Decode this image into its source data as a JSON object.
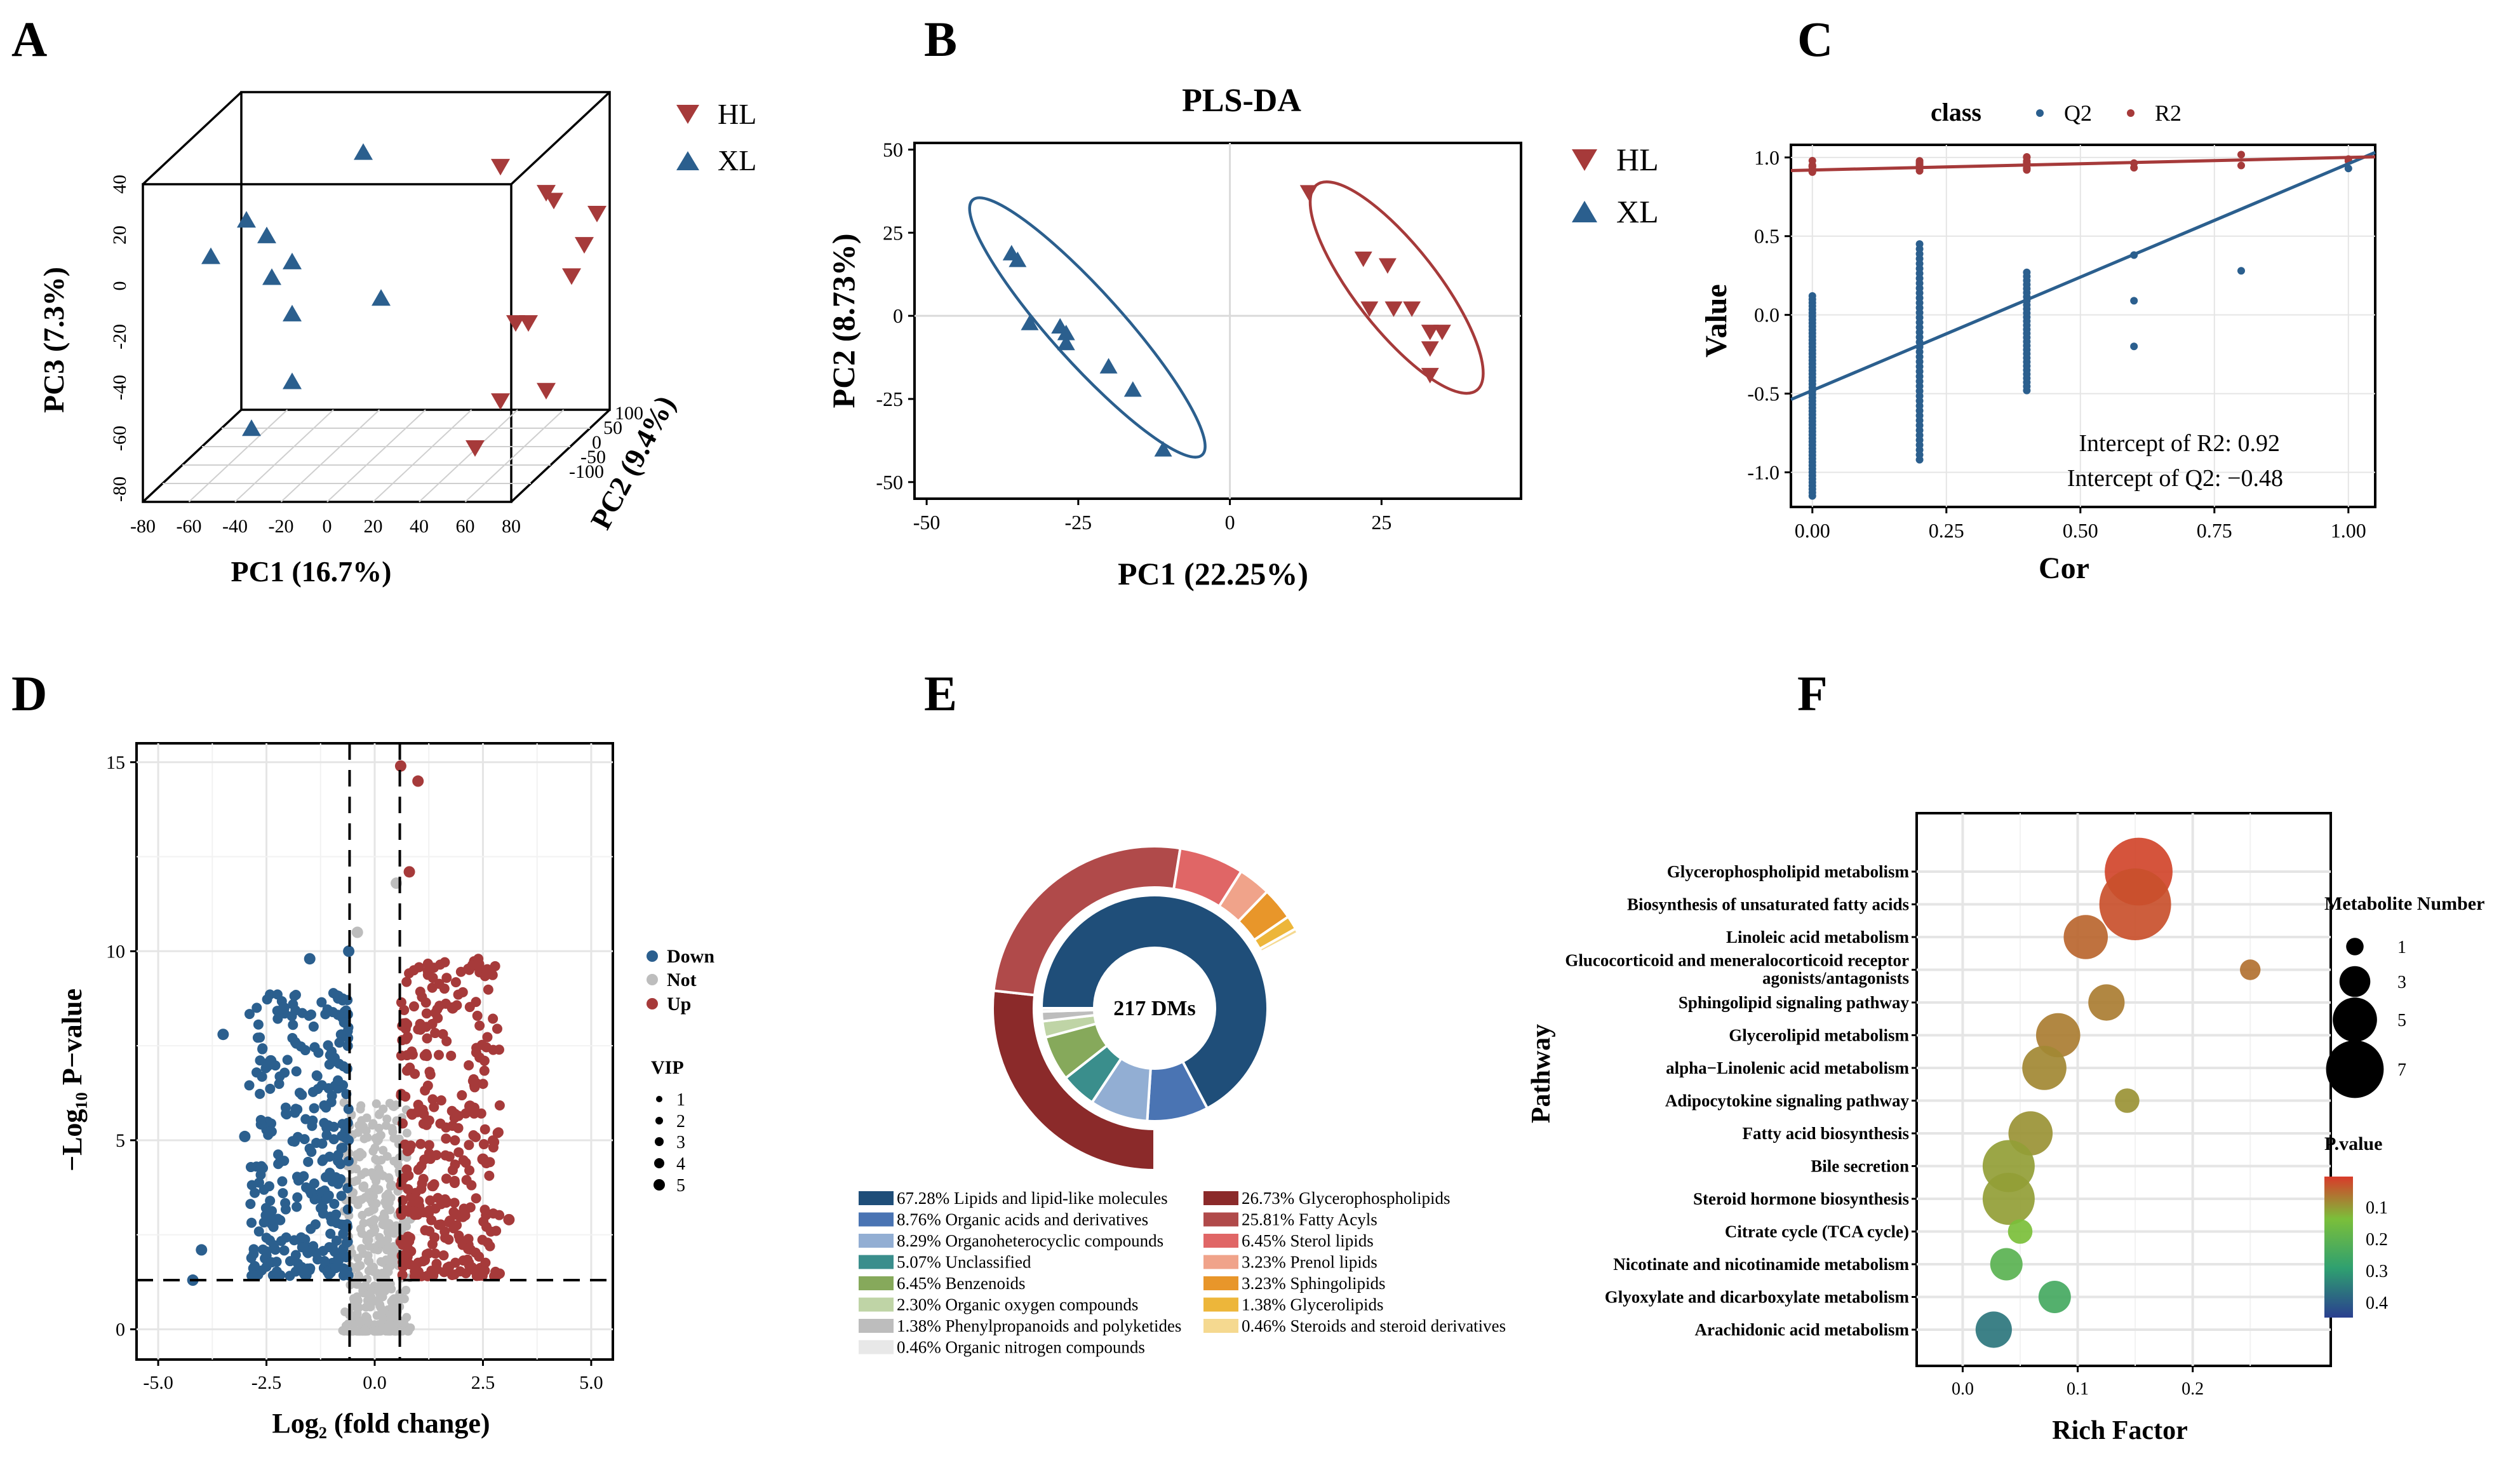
{
  "colors": {
    "red": "#A63A3A",
    "blue": "#2B5F8E",
    "grey": "#BDBDBD",
    "axis": "#000000",
    "grid": "#E5E5E5"
  },
  "panel_letters": [
    "A",
    "B",
    "C",
    "D",
    "E",
    "F"
  ],
  "chart_data": [
    {
      "panel": "A",
      "type": "scatter",
      "title": "",
      "xlabel": "PC1 (16.7%)",
      "ylabel": "PC3 (7.3%)",
      "zlabel": "PC2 (9.4%)",
      "x_ticks": [
        "-80",
        "-60",
        "-40",
        "-20",
        "0",
        "20",
        "40",
        "60",
        "80"
      ],
      "y_ticks": [
        "40",
        "20",
        "0",
        "-20",
        "-40",
        "-60",
        "-80"
      ],
      "z_ticks": [
        "100",
        "50",
        "0",
        "-50",
        "-100"
      ],
      "legend": [
        {
          "name": "HL",
          "marker": "triangle-down",
          "color": "#A63A3A"
        },
        {
          "name": "XL",
          "marker": "triangle-up",
          "color": "#2B5F8E"
        }
      ],
      "series": [
        {
          "name": "HL",
          "points": [
            [
              52,
              48
            ],
            [
              70,
              38
            ],
            [
              73,
              35
            ],
            [
              90,
              30
            ],
            [
              85,
              18
            ],
            [
              80,
              6
            ],
            [
              58,
              -12
            ],
            [
              63,
              -12
            ],
            [
              70,
              -38
            ],
            [
              52,
              -42
            ],
            [
              42,
              -60
            ]
          ]
        },
        {
          "name": "XL",
          "points": [
            [
              -2,
              54
            ],
            [
              -40,
              22
            ],
            [
              -48,
              28
            ],
            [
              -62,
              14
            ],
            [
              -30,
              12
            ],
            [
              -38,
              6
            ],
            [
              -30,
              -8
            ],
            [
              5,
              -2
            ],
            [
              -30,
              -34
            ],
            [
              -46,
              -52
            ]
          ]
        }
      ]
    },
    {
      "panel": "B",
      "type": "scatter",
      "title": "PLS-DA",
      "xlabel": "PC1 (22.25%)",
      "ylabel": "PC2 (8.73%)",
      "xlim": [
        -52,
        48
      ],
      "ylim": [
        -55,
        52
      ],
      "x_ticks": [
        "-50",
        "-25",
        "0",
        "25"
      ],
      "y_ticks": [
        "50",
        "25",
        "0",
        "-25",
        "-50"
      ],
      "legend": [
        {
          "name": "HL",
          "marker": "triangle-down",
          "color": "#A63A3A"
        },
        {
          "name": "XL",
          "marker": "triangle-up",
          "color": "#2B5F8E"
        }
      ],
      "series": [
        {
          "name": "HL",
          "points": [
            [
              13,
              37
            ],
            [
              22,
              17
            ],
            [
              26,
              15
            ],
            [
              23,
              2
            ],
            [
              27,
              2
            ],
            [
              30,
              2
            ],
            [
              33,
              -5
            ],
            [
              35,
              -5
            ],
            [
              33,
              -10
            ],
            [
              33,
              -18
            ]
          ]
        },
        {
          "name": "XL",
          "points": [
            [
              -36,
              19
            ],
            [
              -35,
              17
            ],
            [
              -33,
              -2
            ],
            [
              -28,
              -3
            ],
            [
              -27,
              -5
            ],
            [
              -27,
              -8
            ],
            [
              -20,
              -15
            ],
            [
              -16,
              -22
            ],
            [
              -11,
              -40
            ]
          ]
        }
      ]
    },
    {
      "panel": "C",
      "type": "scatter",
      "title": "",
      "legend_title": "class",
      "xlabel": "Cor",
      "ylabel": "Value",
      "xlim": [
        -0.04,
        1.05
      ],
      "ylim": [
        -1.22,
        1.08
      ],
      "x_ticks": [
        "0.00",
        "0.25",
        "0.50",
        "0.75",
        "1.00"
      ],
      "y_ticks": [
        "1.0",
        "0.5",
        "0.0",
        "-0.5",
        "-1.0"
      ],
      "series": [
        {
          "name": "Q2",
          "color": "#2B5F8E",
          "intercept": -0.48,
          "slope": 1.44
        },
        {
          "name": "R2",
          "color": "#A63A3A",
          "intercept": 0.92,
          "slope": 0.08
        }
      ],
      "annotations": [
        "Intercept of R2: 0.92",
        "Intercept of Q2: −0.48"
      ]
    },
    {
      "panel": "D",
      "type": "scatter",
      "title": "",
      "xlabel": "Log₂ (fold change)",
      "ylabel": "−Log₁₀ P−value",
      "xlim": [
        -5.5,
        5.5
      ],
      "ylim": [
        -0.8,
        15.5
      ],
      "x_ticks": [
        "-5.0",
        "-2.5",
        "0.0",
        "2.5",
        "5.0"
      ],
      "y_ticks": [
        "15",
        "10",
        "5",
        "0"
      ],
      "thresholds": {
        "fc": [
          -0.58,
          0.58
        ],
        "p": 1.3
      },
      "legend": [
        {
          "name": "Down",
          "color": "#2B5F8E"
        },
        {
          "name": "Not",
          "color": "#BDBDBD"
        },
        {
          "name": "Up",
          "color": "#A63A3A"
        }
      ],
      "vip_legend_title": "VIP",
      "vip_sizes": [
        "1",
        "2",
        "3",
        "4",
        "5"
      ],
      "highlights": [
        [
          0.6,
          14.9
        ],
        [
          1.0,
          14.5
        ],
        [
          0.8,
          12.1
        ],
        [
          0.5,
          11.8
        ],
        [
          -0.4,
          10.5
        ],
        [
          -0.6,
          10.0
        ],
        [
          -1.5,
          9.8
        ],
        [
          -2.1,
          8.5
        ],
        [
          -2.4,
          7.1
        ],
        [
          1.8,
          8.5
        ],
        [
          -3.5,
          7.8
        ],
        [
          -4.0,
          2.1
        ],
        [
          2.2,
          5.9
        ],
        [
          2.5,
          4.5
        ],
        [
          3.1,
          2.9
        ],
        [
          -3.0,
          5.1
        ],
        [
          -4.2,
          1.3
        ]
      ]
    },
    {
      "panel": "E",
      "type": "pie",
      "title": "",
      "center_label": "217 DMs",
      "inner": [
        {
          "label": "Lipids and lipid-like molecules",
          "value": 67.28,
          "color": "#1F4E79"
        },
        {
          "label": "Organic acids and derivatives",
          "value": 8.76,
          "color": "#4A74B3"
        },
        {
          "label": "Organoheterocyclic compounds",
          "value": 8.29,
          "color": "#92AED3"
        },
        {
          "label": "Unclassified",
          "value": 5.07,
          "color": "#3A8E8C"
        },
        {
          "label": "Benzenoids",
          "value": 6.45,
          "color": "#86A95B"
        },
        {
          "label": "Organic oxygen compounds",
          "value": 2.3,
          "color": "#BFD4A6"
        },
        {
          "label": "Phenylpropanoids and polyketides",
          "value": 1.38,
          "color": "#BDBDBD"
        },
        {
          "label": "Organic nitrogen compounds",
          "value": 0.46,
          "color": "#E8E8E8"
        }
      ],
      "outer": [
        {
          "label": "Glycerophospholipids",
          "value": 26.73,
          "color": "#8B2A2A"
        },
        {
          "label": "Fatty Acyls",
          "value": 25.81,
          "color": "#B04A4A"
        },
        {
          "label": "Sterol lipids",
          "value": 6.45,
          "color": "#E06666"
        },
        {
          "label": "Prenol lipids",
          "value": 3.23,
          "color": "#F0A38A"
        },
        {
          "label": "Sphingolipids",
          "value": 3.23,
          "color": "#E8962A"
        },
        {
          "label": "Glycerolipids",
          "value": 1.38,
          "color": "#EDB63A"
        },
        {
          "label": "Steroids and steroid derivatives",
          "value": 0.46,
          "color": "#F5D990"
        }
      ]
    },
    {
      "panel": "F",
      "type": "scatter",
      "title": "",
      "xlabel": "Rich Factor",
      "ylabel": "Pathway",
      "xlim": [
        -0.04,
        0.32
      ],
      "x_ticks": [
        "0.0",
        "0.1",
        "0.2"
      ],
      "size_legend_title": "Metabolite Number",
      "size_legend": [
        "1",
        "3",
        "5",
        "7"
      ],
      "color_legend_title": "P.value",
      "color_ticks": [
        "0.1",
        "0.2",
        "0.3",
        "0.4"
      ],
      "pathways": [
        {
          "name": "Glycerophospholipid metabolism",
          "rich": 0.153,
          "n": 7,
          "p": 0.01
        },
        {
          "name": "Biosynthesis of unsaturated fatty acids",
          "rich": 0.15,
          "n": 7.5,
          "p": 0.02
        },
        {
          "name": "Linoleic acid metabolism",
          "rich": 0.107,
          "n": 4,
          "p": 0.04
        },
        {
          "name": "Glucocorticoid and meneralocorticoid receptor agonists/antagonists",
          "rich": 0.25,
          "n": 1,
          "p": 0.05
        },
        {
          "name": "Sphingolipid signaling pathway",
          "rich": 0.125,
          "n": 3,
          "p": 0.06
        },
        {
          "name": "Glycerolipid metabolism",
          "rich": 0.083,
          "n": 4,
          "p": 0.06
        },
        {
          "name": "alpha−Linolenic acid metabolism",
          "rich": 0.071,
          "n": 4,
          "p": 0.07
        },
        {
          "name": "Adipocytokine signaling pathway",
          "rich": 0.143,
          "n": 1.5,
          "p": 0.08
        },
        {
          "name": "Fatty acid biosynthesis",
          "rich": 0.059,
          "n": 4,
          "p": 0.08
        },
        {
          "name": "Bile secretion",
          "rich": 0.04,
          "n": 5,
          "p": 0.09
        },
        {
          "name": "Steroid hormone biosynthesis",
          "rich": 0.04,
          "n": 5,
          "p": 0.09
        },
        {
          "name": "Citrate cycle (TCA cycle)",
          "rich": 0.05,
          "n": 1.5,
          "p": 0.12
        },
        {
          "name": "Nicotinate and nicotinamide metabolism",
          "rich": 0.038,
          "n": 2.5,
          "p": 0.18
        },
        {
          "name": "Glyoxylate and dicarboxylate metabolism",
          "rich": 0.08,
          "n": 2.5,
          "p": 0.22
        },
        {
          "name": "Arachidonic acid metabolism",
          "rich": 0.027,
          "n": 3,
          "p": 0.32
        }
      ]
    }
  ]
}
